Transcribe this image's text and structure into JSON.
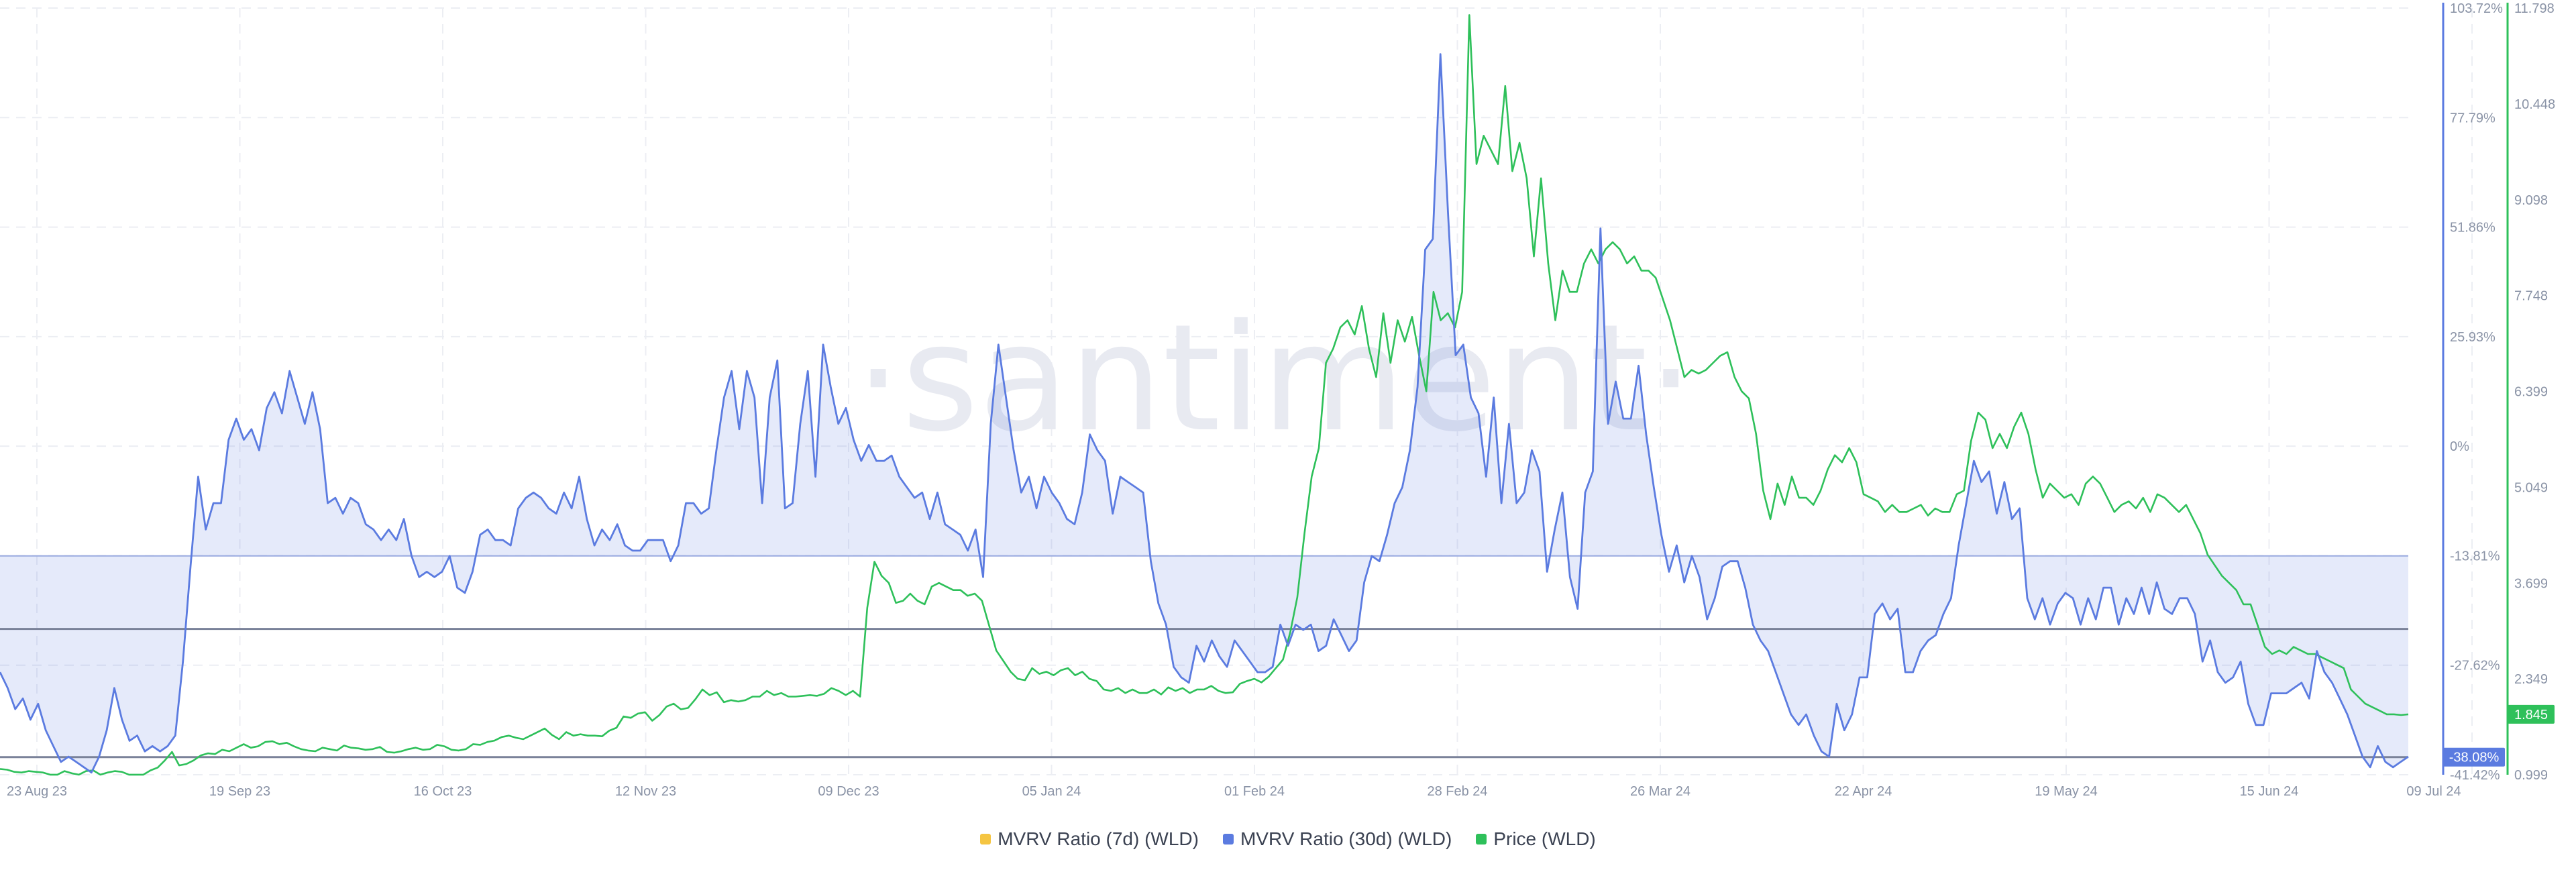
{
  "watermark": "·santiment·",
  "legend": [
    {
      "label": "MVRV Ratio (7d) (WLD)",
      "color": "#f5c542"
    },
    {
      "label": "MVRV Ratio (30d) (WLD)",
      "color": "#5b7be0"
    },
    {
      "label": "Price (WLD)",
      "color": "#2ec05a"
    }
  ],
  "chart_data": {
    "type": "line",
    "x_ticks": [
      "23 Aug 23",
      "19 Sep 23",
      "16 Oct 23",
      "12 Nov 23",
      "09 Dec 23",
      "05 Jan 24",
      "01 Feb 24",
      "28 Feb 24",
      "26 Mar 24",
      "22 Apr 24",
      "19 May 24",
      "15 Jun 24",
      "09 Jul 24"
    ],
    "y_left_ticks": [
      "103.72%",
      "77.79%",
      "51.86%",
      "25.93%",
      "0%",
      "-13.81%",
      "-27.62%",
      "-41.42%"
    ],
    "y_right_ticks": [
      "11.798",
      "10.448",
      "9.098",
      "7.748",
      "6.399",
      "5.049",
      "3.699",
      "2.349",
      "0.999"
    ],
    "ylim_mvrv": [
      -41.42,
      103.72
    ],
    "ylim_price": [
      0.999,
      11.798
    ],
    "reference_lines": [
      0,
      -13.81,
      -38.08
    ],
    "badges": {
      "mvrv_last": "-38.08%",
      "price_last": "1.845"
    },
    "grid": true,
    "series": [
      {
        "name": "MVRV Ratio (30d) (WLD)",
        "color": "#5b7be0",
        "values": [
          -22,
          -25,
          -29,
          -27,
          -31,
          -28,
          -33,
          -36,
          -39,
          -38,
          -39,
          -40,
          -41,
          -38,
          -33,
          -25,
          -31,
          -35,
          -34,
          -37,
          -36,
          -37,
          -36,
          -34,
          -20,
          -2,
          15,
          5,
          10,
          10,
          22,
          26,
          22,
          24,
          20,
          28,
          31,
          27,
          35,
          30,
          25,
          31,
          24,
          10,
          11,
          8,
          11,
          10,
          6,
          5,
          3,
          5,
          3,
          7,
          0,
          -4,
          -3,
          -4,
          -3,
          0,
          -6,
          -7,
          -3,
          4,
          5,
          3,
          3,
          2,
          9,
          11,
          12,
          11,
          9,
          8,
          12,
          9,
          15,
          7,
          2,
          5,
          3,
          6,
          2,
          1,
          1,
          3,
          3,
          3,
          -1,
          2,
          10,
          10,
          8,
          9,
          20,
          30,
          35,
          24,
          35,
          30,
          10,
          30,
          37,
          9,
          10,
          25,
          35,
          15,
          40,
          32,
          25,
          28,
          22,
          18,
          21,
          18,
          18,
          19,
          15,
          13,
          11,
          12,
          7,
          12,
          6,
          5,
          4,
          1,
          5,
          -4,
          25,
          40,
          30,
          20,
          12,
          15,
          9,
          15,
          12,
          10,
          7,
          6,
          12,
          23,
          20,
          18,
          8,
          15,
          14,
          13,
          12,
          -1,
          -9,
          -13,
          -21,
          -23,
          -24,
          -17,
          -20,
          -16,
          -19,
          -21,
          -16,
          -18,
          -20,
          -22,
          -22,
          -21,
          -13,
          -17,
          -13,
          -14,
          -13,
          -18,
          -17,
          -12,
          -15,
          -18,
          -16,
          -5,
          0,
          -1,
          4,
          10,
          13,
          20,
          32,
          58,
          60,
          95,
          65,
          38,
          40,
          30,
          27,
          15,
          30,
          10,
          25,
          10,
          12,
          20,
          16,
          -3,
          5,
          12,
          -4,
          -10,
          12,
          16,
          62,
          25,
          33,
          26,
          26,
          36,
          23,
          13,
          4,
          -3,
          2,
          -5,
          0,
          -4,
          -12,
          -8,
          -2,
          -1,
          -1,
          -6,
          -13,
          -16,
          -18,
          -22,
          -26,
          -30,
          -32,
          -30,
          -34,
          -37,
          -38,
          -28,
          -33,
          -30,
          -23,
          -23,
          -11,
          -9,
          -12,
          -10,
          -22,
          -22,
          -18,
          -16,
          -15,
          -11,
          -8,
          2,
          10,
          18,
          14,
          16,
          8,
          14,
          7,
          9,
          -8,
          -12,
          -8,
          -13,
          -9,
          -7,
          -8,
          -13,
          -8,
          -12,
          -6,
          -6,
          -13,
          -8,
          -11,
          -6,
          -11,
          -5,
          -10,
          -11,
          -8,
          -8,
          -11,
          -20,
          -16,
          -22,
          -24,
          -23,
          -20,
          -28,
          -32,
          -32,
          -26,
          -26,
          -26,
          -25,
          -24,
          -27,
          -18,
          -22,
          -24,
          -27,
          -30,
          -34,
          -38,
          -40,
          -36,
          -39,
          -40,
          -39,
          -38
        ]
      },
      {
        "name": "Price (WLD)",
        "color": "#2ec05a",
        "values": [
          1.08,
          1.07,
          1.04,
          1.03,
          1.05,
          1.04,
          1.03,
          1.0,
          1.0,
          1.05,
          1.02,
          1.0,
          1.05,
          1.06,
          1.0,
          1.03,
          1.05,
          1.04,
          1.0,
          1.0,
          1.0,
          1.06,
          1.1,
          1.2,
          1.32,
          1.13,
          1.15,
          1.2,
          1.27,
          1.3,
          1.29,
          1.35,
          1.33,
          1.38,
          1.43,
          1.38,
          1.4,
          1.46,
          1.47,
          1.43,
          1.45,
          1.4,
          1.36,
          1.34,
          1.33,
          1.38,
          1.36,
          1.34,
          1.41,
          1.38,
          1.37,
          1.35,
          1.36,
          1.39,
          1.32,
          1.31,
          1.33,
          1.36,
          1.38,
          1.35,
          1.36,
          1.42,
          1.4,
          1.35,
          1.34,
          1.36,
          1.43,
          1.42,
          1.46,
          1.48,
          1.53,
          1.55,
          1.52,
          1.5,
          1.55,
          1.6,
          1.65,
          1.56,
          1.5,
          1.6,
          1.55,
          1.57,
          1.55,
          1.55,
          1.54,
          1.62,
          1.66,
          1.82,
          1.8,
          1.86,
          1.88,
          1.76,
          1.84,
          1.96,
          2.0,
          1.92,
          1.94,
          2.06,
          2.2,
          2.12,
          2.16,
          2.02,
          2.05,
          2.03,
          2.05,
          2.1,
          2.1,
          2.18,
          2.12,
          2.15,
          2.1,
          2.1,
          2.11,
          2.12,
          2.11,
          2.14,
          2.22,
          2.18,
          2.12,
          2.18,
          2.1,
          3.35,
          4.0,
          3.8,
          3.7,
          3.42,
          3.45,
          3.55,
          3.45,
          3.4,
          3.65,
          3.7,
          3.65,
          3.6,
          3.6,
          3.52,
          3.55,
          3.45,
          3.1,
          2.75,
          2.6,
          2.45,
          2.35,
          2.33,
          2.5,
          2.42,
          2.45,
          2.4,
          2.47,
          2.5,
          2.4,
          2.45,
          2.35,
          2.32,
          2.2,
          2.18,
          2.22,
          2.15,
          2.2,
          2.15,
          2.15,
          2.2,
          2.13,
          2.23,
          2.18,
          2.22,
          2.15,
          2.2,
          2.2,
          2.25,
          2.18,
          2.15,
          2.16,
          2.28,
          2.32,
          2.35,
          2.3,
          2.38,
          2.5,
          2.62,
          3.0,
          3.5,
          4.4,
          5.2,
          5.6,
          6.8,
          7.0,
          7.3,
          7.4,
          7.2,
          7.6,
          7.0,
          6.6,
          7.5,
          6.8,
          7.4,
          7.1,
          7.45,
          6.9,
          6.4,
          7.8,
          7.4,
          7.5,
          7.3,
          7.8,
          11.7,
          9.6,
          10.0,
          9.8,
          9.6,
          10.7,
          9.5,
          9.9,
          9.4,
          8.3,
          9.4,
          8.2,
          7.4,
          8.1,
          7.8,
          7.8,
          8.2,
          8.4,
          8.2,
          8.4,
          8.5,
          8.4,
          8.2,
          8.3,
          8.1,
          8.1,
          8.0,
          7.7,
          7.4,
          7.0,
          6.6,
          6.7,
          6.65,
          6.7,
          6.8,
          6.9,
          6.95,
          6.6,
          6.4,
          6.3,
          5.8,
          5.0,
          4.6,
          5.1,
          4.8,
          5.2,
          4.9,
          4.9,
          4.8,
          5.0,
          5.3,
          5.5,
          5.4,
          5.6,
          5.4,
          4.95,
          4.9,
          4.85,
          4.7,
          4.8,
          4.7,
          4.7,
          4.75,
          4.8,
          4.65,
          4.75,
          4.7,
          4.7,
          4.95,
          5.0,
          5.7,
          6.1,
          6.0,
          5.6,
          5.8,
          5.6,
          5.9,
          6.1,
          5.8,
          5.3,
          4.9,
          5.1,
          5.0,
          4.9,
          4.95,
          4.8,
          5.1,
          5.2,
          5.1,
          4.9,
          4.7,
          4.8,
          4.85,
          4.75,
          4.9,
          4.7,
          4.95,
          4.9,
          4.8,
          4.7,
          4.8,
          4.6,
          4.4,
          4.1,
          3.95,
          3.8,
          3.7,
          3.6,
          3.4,
          3.4,
          3.1,
          2.8,
          2.7,
          2.75,
          2.7,
          2.8,
          2.75,
          2.7,
          2.7,
          2.65,
          2.6,
          2.55,
          2.5,
          2.2,
          2.1,
          2.0,
          1.95,
          1.9,
          1.85,
          1.85,
          1.84,
          1.85
        ]
      }
    ]
  }
}
